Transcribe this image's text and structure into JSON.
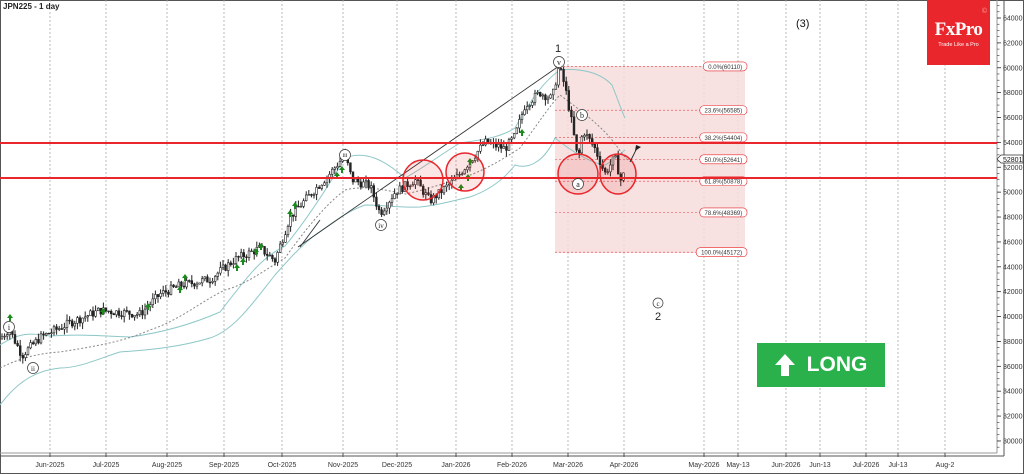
{
  "header": {
    "title": "JPN225 - 1 day"
  },
  "logo": {
    "brand": "FxPro",
    "tagline": "Trade Like a Pro",
    "copyright": "©"
  },
  "signal": {
    "label": "LONG",
    "icon": "arrow-up-icon",
    "color": "#2bb14c"
  },
  "colors": {
    "resistance": "#e8262b",
    "bollinger": "#8ec7c8",
    "fib_zone": "#f6dcdc",
    "long": "#2bb14c",
    "candle": "#222222"
  },
  "wave_labels": {
    "top_1": "1",
    "v": "v",
    "iii": "iii",
    "iv": "iv",
    "ii": "ii",
    "i": "i",
    "a": "a",
    "b": "b",
    "c": "c",
    "bottom_2": "2",
    "wave3": "(3)"
  },
  "current_price": "52801",
  "chart_data": {
    "type": "candlestick",
    "title": "JPN225 - 1 day",
    "xlabel": "",
    "ylabel": "",
    "ylim": [
      29000,
      65000
    ],
    "grid": true,
    "y_ticks": [
      "64000",
      "62000",
      "60000",
      "58000",
      "56000",
      "54000",
      "52000",
      "50000",
      "48000",
      "46000",
      "44000",
      "42000",
      "40000",
      "38000",
      "36000",
      "34000",
      "32000",
      "30000"
    ],
    "x_ticks": [
      "Jun-2025",
      "Jul-2025",
      "Aug-2025",
      "Sep-2025",
      "Oct-2025",
      "Nov-2025",
      "Dec-2025",
      "Jan-2026",
      "Feb-2026",
      "Mar-2026",
      "Apr-2026",
      "May-2026",
      "May-13",
      "Jun-2026",
      "Jun-13",
      "Jul-2026",
      "Jul-13",
      "Aug-2"
    ],
    "horizontal_lines": [
      54000,
      51150
    ],
    "fibonacci": [
      {
        "level": "0.0%",
        "price": 60110,
        "label": "0.0%(60110)"
      },
      {
        "level": "23.6%",
        "price": 56585,
        "label": "23.6%(56585)"
      },
      {
        "level": "38.2%",
        "price": 54404,
        "label": "38.2%(54404)"
      },
      {
        "level": "50.0%",
        "price": 52641,
        "label": "50.0%(52641)"
      },
      {
        "level": "61.8%",
        "price": 50878,
        "label": "61.8%(50878)"
      },
      {
        "level": "78.6%",
        "price": 48369,
        "label": "78.6%(48369)"
      },
      {
        "level": "100.0%",
        "price": 45172,
        "label": "100.0%(45172)"
      }
    ],
    "approx_close_series": {
      "dates": [
        "Jun-2025",
        "Jul-2025",
        "Aug-2025",
        "Sep-2025",
        "Oct-2025",
        "Nov-2025",
        "Dec-2025",
        "Jan-2026",
        "Feb-2026",
        "Mar-2026",
        "Apr-2026"
      ],
      "values": [
        37500,
        39800,
        40500,
        43000,
        45000,
        51500,
        49500,
        51000,
        53500,
        57000,
        51500
      ]
    },
    "annotations": [
      "wave (i) ~38800 Jun-2025",
      "wave (ii) ~36800 Jun-2025",
      "wave (iii) ~52800 Nov-2025",
      "wave (iv) ~48500 Dec-2025",
      "wave (v)/1 ~60110 late Feb-2026",
      "wave (a) ~50800 Mar-2026",
      "wave (b) ~56600 Mar-2026",
      "wave (c)/2 ~42000 Apr-2026 projected",
      "(3) target above 64000"
    ],
    "legend": []
  }
}
